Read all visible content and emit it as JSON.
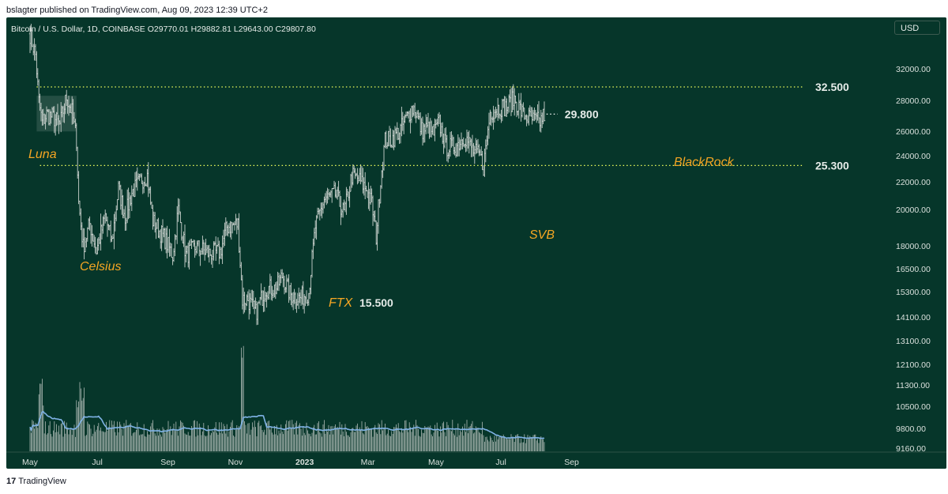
{
  "header": {
    "published": "bslagter published on TradingView.com, Aug 09, 2023 12:39 UTC+2"
  },
  "footer": {
    "logo_mark": "17",
    "logo_text": "TradingView"
  },
  "legend": {
    "symbol": "Bitcoin / U.S. Dollar, 1D, COINBASE",
    "open": "O29770.01",
    "high": "H29882.81",
    "low": "L29643.00",
    "close": "C29807.80"
  },
  "currency": "USD",
  "colors": {
    "bg": "#06362a",
    "bars": "#c9d1cd",
    "levels": "#f0ff5c",
    "annotations": "#f5a623",
    "ma": "#7fb2e5",
    "volume": "#aebab5"
  },
  "chart_data": {
    "type": "ohlc",
    "title": "Bitcoin / U.S. Dollar, 1D, COINBASE",
    "y_axis": {
      "scale": "log",
      "tick_labels": [
        "32000.00",
        "28000.00",
        "26000.00",
        "24000.00",
        "22000.00",
        "20000.00",
        "18000.00",
        "16500.00",
        "15300.00",
        "14100.00",
        "13100.00",
        "12100.00",
        "11300.00",
        "10500.00",
        "9800.00",
        "9160.00"
      ]
    },
    "x_axis": {
      "tick_labels": [
        "May",
        "Jul",
        "Sep",
        "Nov",
        "2023",
        "Mar",
        "May",
        "Jul",
        "Sep"
      ]
    },
    "price_path": [
      [
        "2022-05-01",
        38500
      ],
      [
        "2022-05-06",
        36000
      ],
      [
        "2022-05-09",
        31000
      ],
      [
        "2022-05-12",
        29000
      ],
      [
        "2022-05-16",
        29800
      ],
      [
        "2022-05-22",
        29500
      ],
      [
        "2022-05-28",
        28800
      ],
      [
        "2022-06-03",
        31500
      ],
      [
        "2022-06-08",
        30000
      ],
      [
        "2022-06-12",
        27500
      ],
      [
        "2022-06-14",
        22500
      ],
      [
        "2022-06-18",
        19500
      ],
      [
        "2022-06-24",
        21000
      ],
      [
        "2022-06-30",
        19300
      ],
      [
        "2022-07-08",
        21500
      ],
      [
        "2022-07-14",
        19800
      ],
      [
        "2022-07-20",
        23500
      ],
      [
        "2022-07-26",
        21500
      ],
      [
        "2022-08-01",
        23200
      ],
      [
        "2022-08-10",
        24200
      ],
      [
        "2022-08-15",
        24500
      ],
      [
        "2022-08-20",
        21200
      ],
      [
        "2022-08-31",
        20000
      ],
      [
        "2022-09-07",
        19000
      ],
      [
        "2022-09-12",
        22000
      ],
      [
        "2022-09-19",
        19000
      ],
      [
        "2022-09-28",
        19500
      ],
      [
        "2022-10-10",
        19100
      ],
      [
        "2022-10-20",
        19200
      ],
      [
        "2022-10-26",
        20800
      ],
      [
        "2022-11-05",
        21000
      ],
      [
        "2022-11-09",
        16500
      ],
      [
        "2022-11-14",
        16500
      ],
      [
        "2022-11-21",
        15800
      ],
      [
        "2022-11-30",
        17100
      ],
      [
        "2022-12-10",
        17100
      ],
      [
        "2022-12-15",
        17800
      ],
      [
        "2022-12-22",
        16800
      ],
      [
        "2022-12-31",
        16550
      ],
      [
        "2023-01-08",
        16900
      ],
      [
        "2023-01-14",
        20800
      ],
      [
        "2023-01-22",
        22700
      ],
      [
        "2023-02-01",
        23100
      ],
      [
        "2023-02-09",
        21700
      ],
      [
        "2023-02-16",
        24500
      ],
      [
        "2023-02-22",
        24200
      ],
      [
        "2023-03-01",
        23500
      ],
      [
        "2023-03-06",
        22400
      ],
      [
        "2023-03-10",
        20200
      ],
      [
        "2023-03-14",
        24200
      ],
      [
        "2023-03-18",
        27400
      ],
      [
        "2023-03-24",
        27500
      ],
      [
        "2023-04-01",
        28400
      ],
      [
        "2023-04-11",
        30300
      ],
      [
        "2023-04-14",
        30400
      ],
      [
        "2023-04-20",
        28300
      ],
      [
        "2023-04-26",
        28500
      ],
      [
        "2023-05-01",
        28000
      ],
      [
        "2023-05-06",
        29000
      ],
      [
        "2023-05-12",
        26800
      ],
      [
        "2023-05-21",
        26900
      ],
      [
        "2023-05-29",
        27800
      ],
      [
        "2023-06-06",
        26500
      ],
      [
        "2023-06-12",
        26000
      ],
      [
        "2023-06-15",
        25200
      ],
      [
        "2023-06-21",
        30000
      ],
      [
        "2023-06-30",
        30500
      ],
      [
        "2023-07-06",
        30500
      ],
      [
        "2023-07-13",
        31300
      ],
      [
        "2023-07-20",
        29900
      ],
      [
        "2023-07-28",
        29300
      ],
      [
        "2023-08-05",
        29100
      ],
      [
        "2023-08-09",
        29800
      ]
    ],
    "horizontal_levels": [
      {
        "label": "32.500",
        "value": 32500,
        "from": "2022-05-07"
      },
      {
        "label": "25.300",
        "value": 25300,
        "from": "2022-05-10"
      },
      {
        "label": "29.800",
        "value": 29800,
        "from": "2023-08-11"
      }
    ],
    "annotations": [
      {
        "text": "Luna"
      },
      {
        "text": "Celsius"
      },
      {
        "text": "FTX"
      },
      {
        "text": "15.500"
      },
      {
        "text": "SVB"
      },
      {
        "text": "BlackRock"
      }
    ],
    "volume": {
      "has_moving_average": true
    }
  }
}
